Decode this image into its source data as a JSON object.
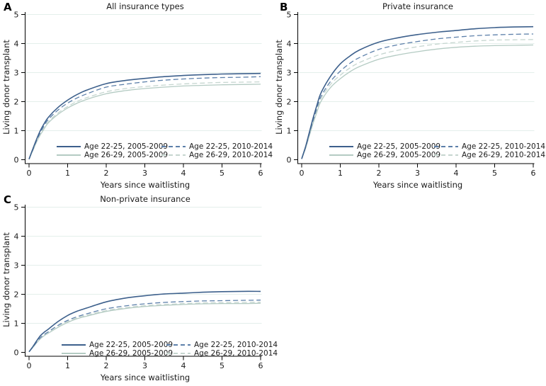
{
  "figure": {
    "background": "#ffffff",
    "panel_letters": [
      "A",
      "B",
      "C"
    ]
  },
  "colors": {
    "navy_solid": "#3d608c",
    "navy_dashed": "#5d80aa",
    "green_solid": "#b4cbc3",
    "green_dashed": "#c6d6d0",
    "gridline": "#e4efeb",
    "axis": "#000000",
    "text": "#1a1a1a"
  },
  "chart_data": [
    {
      "type": "line",
      "panel": "A",
      "title": "All insurance types",
      "xlabel": "Years since waitlisting",
      "ylabel": "Living donor transplant",
      "xlim": [
        0,
        6
      ],
      "ylim": [
        0,
        5
      ],
      "xticks": [
        0,
        1,
        2,
        3,
        4,
        5,
        6
      ],
      "yticks": [
        0,
        1,
        2,
        3,
        4,
        5
      ],
      "grid": "horizontal gridlines at 1-5",
      "legend_position": "inside lower center-right, two columns",
      "x": [
        0,
        0.1,
        0.2,
        0.3,
        0.4,
        0.5,
        0.75,
        1,
        1.25,
        1.5,
        2,
        2.5,
        3,
        3.5,
        4,
        4.5,
        5,
        5.5,
        6
      ],
      "series": [
        {
          "name": "Age 22-25, 2005-2009",
          "line": "solid",
          "color_key": "navy_solid",
          "values": [
            0.02,
            0.38,
            0.72,
            1.02,
            1.26,
            1.46,
            1.8,
            2.05,
            2.25,
            2.4,
            2.62,
            2.73,
            2.8,
            2.86,
            2.9,
            2.93,
            2.95,
            2.96,
            2.97
          ]
        },
        {
          "name": "Age 22-25, 2010-2014",
          "line": "dashed",
          "color_key": "navy_dashed",
          "values": [
            0.02,
            0.35,
            0.67,
            0.95,
            1.19,
            1.39,
            1.71,
            1.95,
            2.13,
            2.27,
            2.5,
            2.6,
            2.68,
            2.74,
            2.78,
            2.81,
            2.83,
            2.84,
            2.86
          ]
        },
        {
          "name": "Age 26-29, 2005-2009",
          "line": "solid",
          "color_key": "green_solid",
          "values": [
            0.02,
            0.32,
            0.62,
            0.87,
            1.08,
            1.27,
            1.56,
            1.78,
            1.95,
            2.08,
            2.27,
            2.38,
            2.45,
            2.5,
            2.54,
            2.56,
            2.58,
            2.59,
            2.6
          ]
        },
        {
          "name": "Age 26-29, 2010-2014",
          "line": "dashed",
          "color_key": "green_dashed",
          "values": [
            0.02,
            0.33,
            0.64,
            0.9,
            1.12,
            1.31,
            1.61,
            1.83,
            2.01,
            2.14,
            2.34,
            2.45,
            2.52,
            2.57,
            2.61,
            2.64,
            2.66,
            2.67,
            2.68
          ]
        }
      ]
    },
    {
      "type": "line",
      "panel": "B",
      "title": "Private insurance",
      "xlabel": "Years since waitlisting",
      "ylabel": "Living donor transplant",
      "xlim": [
        0,
        6
      ],
      "ylim": [
        0,
        5
      ],
      "xticks": [
        0,
        1,
        2,
        3,
        4,
        5,
        6
      ],
      "yticks": [
        0,
        1,
        2,
        3,
        4,
        5
      ],
      "grid": "horizontal gridlines at 1-5",
      "legend_position": "inside lower center-right, two columns",
      "x": [
        0,
        0.1,
        0.2,
        0.3,
        0.4,
        0.5,
        0.75,
        1,
        1.25,
        1.5,
        2,
        2.5,
        3,
        3.5,
        4,
        4.5,
        5,
        5.5,
        6
      ],
      "series": [
        {
          "name": "Age 22-25, 2005-2009",
          "line": "solid",
          "color_key": "navy_solid",
          "values": [
            0.03,
            0.45,
            0.95,
            1.45,
            1.9,
            2.3,
            2.88,
            3.3,
            3.57,
            3.78,
            4.05,
            4.2,
            4.31,
            4.39,
            4.45,
            4.51,
            4.55,
            4.57,
            4.58
          ]
        },
        {
          "name": "Age 22-25, 2010-2014",
          "line": "dashed",
          "color_key": "navy_dashed",
          "values": [
            0.03,
            0.42,
            0.9,
            1.37,
            1.8,
            2.18,
            2.7,
            3.05,
            3.32,
            3.52,
            3.8,
            3.96,
            4.07,
            4.16,
            4.22,
            4.27,
            4.3,
            4.32,
            4.33
          ]
        },
        {
          "name": "Age 26-29, 2005-2009",
          "line": "solid",
          "color_key": "green_solid",
          "values": [
            0.03,
            0.39,
            0.83,
            1.27,
            1.66,
            2.01,
            2.49,
            2.79,
            3.03,
            3.21,
            3.46,
            3.61,
            3.72,
            3.81,
            3.87,
            3.91,
            3.93,
            3.94,
            3.95
          ]
        },
        {
          "name": "Age 26-29, 2010-2014",
          "line": "dashed",
          "color_key": "green_dashed",
          "values": [
            0.03,
            0.41,
            0.87,
            1.33,
            1.74,
            2.1,
            2.6,
            2.91,
            3.16,
            3.35,
            3.61,
            3.77,
            3.89,
            3.98,
            4.04,
            4.09,
            4.12,
            4.13,
            4.14
          ]
        }
      ]
    },
    {
      "type": "line",
      "panel": "C",
      "title": "Non-private insurance",
      "xlabel": "Years since waitlisting",
      "ylabel": "Living donor transplant",
      "xlim": [
        0,
        6
      ],
      "ylim": [
        0,
        5
      ],
      "xticks": [
        0,
        1,
        2,
        3,
        4,
        5,
        6
      ],
      "yticks": [
        0,
        1,
        2,
        3,
        4,
        5
      ],
      "grid": "horizontal gridlines at 1-5",
      "legend_position": "inside lower center-right, two columns",
      "x": [
        0,
        0.1,
        0.2,
        0.3,
        0.4,
        0.5,
        0.75,
        1,
        1.25,
        1.5,
        2,
        2.5,
        3,
        3.5,
        4,
        4.5,
        5,
        5.5,
        6
      ],
      "series": [
        {
          "name": "Age 22-25, 2005-2009",
          "line": "solid",
          "color_key": "navy_solid",
          "values": [
            0.02,
            0.2,
            0.4,
            0.58,
            0.7,
            0.8,
            1.06,
            1.27,
            1.42,
            1.53,
            1.74,
            1.87,
            1.95,
            2.01,
            2.04,
            2.07,
            2.09,
            2.1,
            2.1
          ]
        },
        {
          "name": "Age 22-25, 2010-2014",
          "line": "dashed",
          "color_key": "navy_dashed",
          "values": [
            0.02,
            0.18,
            0.36,
            0.51,
            0.62,
            0.71,
            0.93,
            1.1,
            1.23,
            1.33,
            1.5,
            1.6,
            1.67,
            1.72,
            1.75,
            1.77,
            1.78,
            1.79,
            1.8
          ]
        },
        {
          "name": "Age 26-29, 2005-2009",
          "line": "solid",
          "color_key": "green_solid",
          "values": [
            0.02,
            0.17,
            0.33,
            0.47,
            0.58,
            0.66,
            0.86,
            1.03,
            1.16,
            1.25,
            1.41,
            1.51,
            1.58,
            1.62,
            1.65,
            1.67,
            1.68,
            1.68,
            1.69
          ]
        },
        {
          "name": "Age 26-29, 2010-2014",
          "line": "dashed",
          "color_key": "green_dashed",
          "values": [
            0.02,
            0.17,
            0.34,
            0.48,
            0.59,
            0.68,
            0.88,
            1.06,
            1.19,
            1.28,
            1.44,
            1.54,
            1.61,
            1.65,
            1.68,
            1.7,
            1.71,
            1.72,
            1.73
          ]
        }
      ]
    }
  ]
}
